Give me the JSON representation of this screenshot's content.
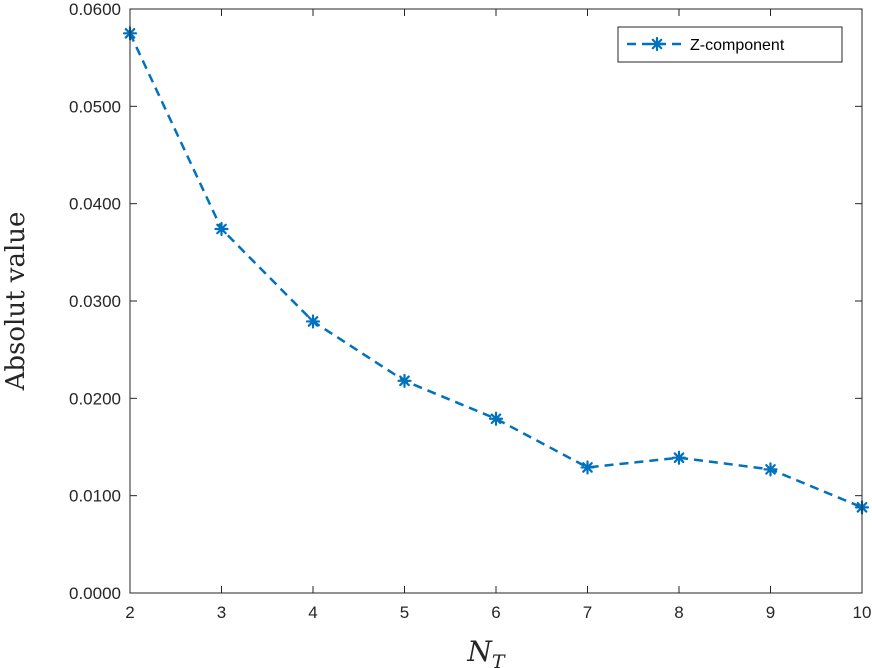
{
  "chart_data": {
    "type": "line",
    "title": "",
    "xlabel": "N",
    "xlabel_subscript": "T",
    "ylabel": "Absolut value",
    "xlim": [
      2,
      10
    ],
    "ylim": [
      0,
      0.06
    ],
    "xticks": [
      "2",
      "3",
      "4",
      "5",
      "6",
      "7",
      "8",
      "9",
      "10"
    ],
    "yticks": [
      "0.0000",
      "0.0100",
      "0.0200",
      "0.0300",
      "0.0400",
      "0.0500",
      "0.0600"
    ],
    "grid": false,
    "legend_position": "top-right",
    "series": [
      {
        "name": "Z-component",
        "color": "#0072BD",
        "line_style": "dashed",
        "marker": "asterisk",
        "x": [
          2,
          3,
          4,
          5,
          6,
          7,
          8,
          9,
          10
        ],
        "y": [
          0.0575,
          0.0374,
          0.0279,
          0.0218,
          0.0179,
          0.0129,
          0.0139,
          0.0127,
          0.0088
        ]
      }
    ]
  }
}
